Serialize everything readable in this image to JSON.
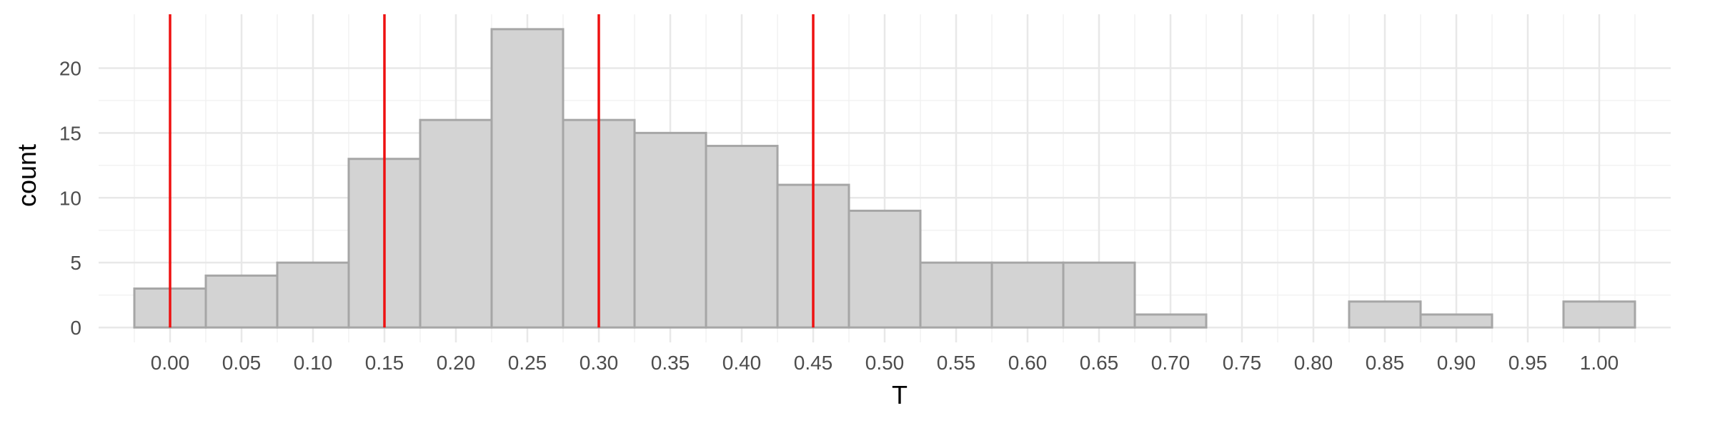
{
  "chart_data": {
    "type": "bar",
    "title": "",
    "xlabel": "T",
    "ylabel": "count",
    "bin_width": 0.05,
    "bin_centers": [
      0.0,
      0.05,
      0.1,
      0.15,
      0.2,
      0.25,
      0.3,
      0.35,
      0.4,
      0.45,
      0.5,
      0.55,
      0.6,
      0.65,
      0.7,
      0.75,
      0.8,
      0.85,
      0.9,
      0.95,
      1.0
    ],
    "values": [
      3,
      4,
      5,
      13,
      16,
      23,
      16,
      15,
      14,
      11,
      9,
      5,
      5,
      5,
      1,
      0,
      0,
      2,
      1,
      0,
      2
    ],
    "xlim": [
      -0.05,
      1.05
    ],
    "ylim": [
      -1.15,
      24.15
    ],
    "x_ticks": [
      0.0,
      0.05,
      0.1,
      0.15,
      0.2,
      0.25,
      0.3,
      0.35,
      0.4,
      0.45,
      0.5,
      0.55,
      0.6,
      0.65,
      0.7,
      0.75,
      0.8,
      0.85,
      0.9,
      0.95,
      1.0
    ],
    "x_tick_labels": [
      "0.00",
      "0.05",
      "0.10",
      "0.15",
      "0.20",
      "0.25",
      "0.30",
      "0.35",
      "0.40",
      "0.45",
      "0.50",
      "0.55",
      "0.60",
      "0.65",
      "0.70",
      "0.75",
      "0.80",
      "0.85",
      "0.90",
      "0.95",
      "1.00"
    ],
    "y_ticks": [
      0,
      5,
      10,
      15,
      20
    ],
    "y_tick_labels": [
      "0",
      "5",
      "10",
      "15",
      "20"
    ],
    "vlines": [
      0.0,
      0.15,
      0.3,
      0.45
    ],
    "grid": true,
    "colors": {
      "bar_fill": "#d3d3d3",
      "bar_stroke": "#a6a6a6",
      "vline": "#ee1111",
      "grid_major": "#e8e8e8",
      "grid_minor": "#f2f2f2"
    }
  }
}
